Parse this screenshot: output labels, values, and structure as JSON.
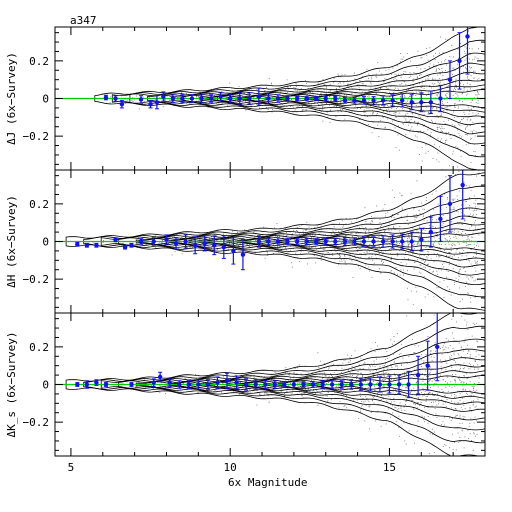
{
  "figure": {
    "tag": "a347",
    "xlabel": "6x Magnitude",
    "reference_line_color": "#00cc00",
    "point_color": "#1010ff",
    "contour_color": "#000000"
  },
  "chart_data": [
    {
      "type": "scatter",
      "ylabel": "ΔJ (6x−Survey)",
      "xlim": [
        4.5,
        18.0
      ],
      "ylim": [
        -0.38,
        0.38
      ],
      "xticks": [
        5,
        10,
        15
      ],
      "yticks": [
        -0.2,
        0,
        0.2
      ],
      "ytick_labels": [
        "−0.2",
        "0",
        "0.2"
      ],
      "reference_line": 0,
      "contour_spread": [
        [
          5.9,
          0.02
        ],
        [
          7,
          0.03
        ],
        [
          8,
          0.035
        ],
        [
          9,
          0.045
        ],
        [
          10,
          0.055
        ],
        [
          11,
          0.065
        ],
        [
          12,
          0.08
        ],
        [
          13,
          0.1
        ],
        [
          14,
          0.13
        ],
        [
          15,
          0.17
        ],
        [
          16,
          0.23
        ],
        [
          16.8,
          0.3
        ],
        [
          17.5,
          0.38
        ]
      ],
      "points": [
        {
          "x": 6.1,
          "y": 0.005,
          "err": 0.012
        },
        {
          "x": 6.4,
          "y": 0.0,
          "err": 0.015
        },
        {
          "x": 6.6,
          "y": -0.03,
          "err": 0.02
        },
        {
          "x": 7.2,
          "y": -0.005,
          "err": 0.02
        },
        {
          "x": 7.5,
          "y": -0.03,
          "err": 0.02
        },
        {
          "x": 7.7,
          "y": -0.02,
          "err": 0.035
        },
        {
          "x": 7.9,
          "y": 0.01,
          "err": 0.025
        },
        {
          "x": 8.2,
          "y": 0.0,
          "err": 0.02
        },
        {
          "x": 8.5,
          "y": 0.0,
          "err": 0.02
        },
        {
          "x": 8.8,
          "y": 0.0,
          "err": 0.02
        },
        {
          "x": 9.1,
          "y": 0.0,
          "err": 0.02
        },
        {
          "x": 9.4,
          "y": 0.0,
          "err": 0.02
        },
        {
          "x": 9.7,
          "y": 0.01,
          "err": 0.02
        },
        {
          "x": 10.0,
          "y": 0.0,
          "err": 0.025
        },
        {
          "x": 10.3,
          "y": 0.0,
          "err": 0.03
        },
        {
          "x": 10.6,
          "y": 0.0,
          "err": 0.03
        },
        {
          "x": 10.9,
          "y": 0.01,
          "err": 0.045
        },
        {
          "x": 11.2,
          "y": 0.0,
          "err": 0.025
        },
        {
          "x": 11.5,
          "y": 0.0,
          "err": 0.02
        },
        {
          "x": 11.8,
          "y": 0.0,
          "err": 0.015
        },
        {
          "x": 12.1,
          "y": 0.0,
          "err": 0.012
        },
        {
          "x": 12.4,
          "y": 0.0,
          "err": 0.01
        },
        {
          "x": 12.7,
          "y": 0.0,
          "err": 0.01
        },
        {
          "x": 13.0,
          "y": 0.0,
          "err": 0.012
        },
        {
          "x": 13.3,
          "y": 0.0,
          "err": 0.012
        },
        {
          "x": 13.6,
          "y": -0.01,
          "err": 0.015
        },
        {
          "x": 13.9,
          "y": -0.01,
          "err": 0.015
        },
        {
          "x": 14.2,
          "y": -0.01,
          "err": 0.02
        },
        {
          "x": 14.5,
          "y": -0.01,
          "err": 0.02
        },
        {
          "x": 14.8,
          "y": -0.01,
          "err": 0.025
        },
        {
          "x": 15.1,
          "y": -0.01,
          "err": 0.03
        },
        {
          "x": 15.4,
          "y": -0.01,
          "err": 0.035
        },
        {
          "x": 15.7,
          "y": -0.02,
          "err": 0.04
        },
        {
          "x": 16.0,
          "y": -0.02,
          "err": 0.05
        },
        {
          "x": 16.3,
          "y": -0.02,
          "err": 0.06
        },
        {
          "x": 16.6,
          "y": 0.0,
          "err": 0.07
        },
        {
          "x": 16.9,
          "y": 0.1,
          "err": 0.1
        },
        {
          "x": 17.2,
          "y": 0.2,
          "err": 0.15
        },
        {
          "x": 17.45,
          "y": 0.33,
          "err": 0.2
        }
      ]
    },
    {
      "type": "scatter",
      "ylabel": "ΔH (6x−Survey)",
      "xlim": [
        4.5,
        18.0
      ],
      "ylim": [
        -0.38,
        0.38
      ],
      "xticks": [
        5,
        10,
        15
      ],
      "yticks": [
        -0.2,
        0,
        0.2
      ],
      "ytick_labels": [
        "−0.2",
        "0",
        "0.2"
      ],
      "reference_line": 0,
      "contour_spread": [
        [
          5.0,
          0.02
        ],
        [
          7,
          0.03
        ],
        [
          8,
          0.04
        ],
        [
          9,
          0.05
        ],
        [
          10,
          0.06
        ],
        [
          11,
          0.065
        ],
        [
          12,
          0.08
        ],
        [
          13,
          0.1
        ],
        [
          14,
          0.13
        ],
        [
          15,
          0.17
        ],
        [
          16,
          0.24
        ],
        [
          16.6,
          0.3
        ],
        [
          17.2,
          0.36
        ]
      ],
      "points": [
        {
          "x": 5.2,
          "y": -0.015,
          "err": 0.01
        },
        {
          "x": 5.5,
          "y": -0.02,
          "err": 0.01
        },
        {
          "x": 5.8,
          "y": -0.02,
          "err": 0.01
        },
        {
          "x": 6.4,
          "y": 0.01,
          "err": 0.01
        },
        {
          "x": 6.7,
          "y": -0.03,
          "err": 0.01
        },
        {
          "x": 6.9,
          "y": -0.02,
          "err": 0.01
        },
        {
          "x": 7.2,
          "y": 0.0,
          "err": 0.015
        },
        {
          "x": 7.6,
          "y": 0.0,
          "err": 0.02
        },
        {
          "x": 8.0,
          "y": 0.01,
          "err": 0.025
        },
        {
          "x": 8.3,
          "y": -0.01,
          "err": 0.03
        },
        {
          "x": 8.6,
          "y": 0.0,
          "err": 0.035
        },
        {
          "x": 8.9,
          "y": -0.02,
          "err": 0.045
        },
        {
          "x": 9.2,
          "y": -0.01,
          "err": 0.04
        },
        {
          "x": 9.5,
          "y": -0.02,
          "err": 0.05
        },
        {
          "x": 9.8,
          "y": -0.03,
          "err": 0.06
        },
        {
          "x": 10.1,
          "y": -0.05,
          "err": 0.07
        },
        {
          "x": 10.4,
          "y": -0.07,
          "err": 0.08
        },
        {
          "x": 10.9,
          "y": 0.0,
          "err": 0.03
        },
        {
          "x": 11.2,
          "y": 0.0,
          "err": 0.02
        },
        {
          "x": 11.5,
          "y": 0.0,
          "err": 0.02
        },
        {
          "x": 11.8,
          "y": 0.0,
          "err": 0.015
        },
        {
          "x": 12.1,
          "y": 0.0,
          "err": 0.015
        },
        {
          "x": 12.4,
          "y": 0.0,
          "err": 0.015
        },
        {
          "x": 12.7,
          "y": 0.0,
          "err": 0.015
        },
        {
          "x": 13.0,
          "y": 0.0,
          "err": 0.015
        },
        {
          "x": 13.3,
          "y": 0.0,
          "err": 0.015
        },
        {
          "x": 13.6,
          "y": 0.0,
          "err": 0.02
        },
        {
          "x": 13.9,
          "y": 0.0,
          "err": 0.02
        },
        {
          "x": 14.2,
          "y": 0.0,
          "err": 0.025
        },
        {
          "x": 14.5,
          "y": 0.0,
          "err": 0.025
        },
        {
          "x": 14.8,
          "y": 0.0,
          "err": 0.03
        },
        {
          "x": 15.1,
          "y": 0.0,
          "err": 0.035
        },
        {
          "x": 15.4,
          "y": 0.0,
          "err": 0.04
        },
        {
          "x": 15.7,
          "y": 0.0,
          "err": 0.05
        },
        {
          "x": 16.0,
          "y": 0.01,
          "err": 0.06
        },
        {
          "x": 16.3,
          "y": 0.05,
          "err": 0.08
        },
        {
          "x": 16.6,
          "y": 0.12,
          "err": 0.12
        },
        {
          "x": 16.9,
          "y": 0.2,
          "err": 0.15
        },
        {
          "x": 17.3,
          "y": 0.3,
          "err": 0.18
        }
      ]
    },
    {
      "type": "scatter",
      "ylabel": "ΔK_s (6x−Survey)",
      "xlim": [
        4.5,
        18.0
      ],
      "ylim": [
        -0.38,
        0.38
      ],
      "xticks": [
        5,
        10,
        15
      ],
      "yticks": [
        -0.2,
        0,
        0.2
      ],
      "ytick_labels": [
        "−0.2",
        "0",
        "0.2"
      ],
      "reference_line": 0,
      "contour_spread": [
        [
          5.0,
          0.02
        ],
        [
          7,
          0.03
        ],
        [
          8,
          0.04
        ],
        [
          9,
          0.05
        ],
        [
          10,
          0.06
        ],
        [
          11,
          0.07
        ],
        [
          12,
          0.085
        ],
        [
          13,
          0.11
        ],
        [
          14,
          0.15
        ],
        [
          15,
          0.2
        ],
        [
          15.8,
          0.27
        ],
        [
          16.4,
          0.33
        ],
        [
          17.0,
          0.38
        ]
      ],
      "points": [
        {
          "x": 5.2,
          "y": 0.0,
          "err": 0.01
        },
        {
          "x": 5.5,
          "y": 0.0,
          "err": 0.02
        },
        {
          "x": 5.8,
          "y": 0.01,
          "err": 0.015
        },
        {
          "x": 6.1,
          "y": 0.0,
          "err": 0.01
        },
        {
          "x": 6.9,
          "y": 0.0,
          "err": 0.01
        },
        {
          "x": 7.6,
          "y": 0.01,
          "err": 0.02
        },
        {
          "x": 7.8,
          "y": 0.04,
          "err": 0.025
        },
        {
          "x": 8.1,
          "y": 0.01,
          "err": 0.02
        },
        {
          "x": 8.4,
          "y": 0.0,
          "err": 0.02
        },
        {
          "x": 8.7,
          "y": 0.0,
          "err": 0.02
        },
        {
          "x": 9.0,
          "y": 0.0,
          "err": 0.025
        },
        {
          "x": 9.3,
          "y": 0.0,
          "err": 0.025
        },
        {
          "x": 9.6,
          "y": 0.01,
          "err": 0.03
        },
        {
          "x": 9.9,
          "y": 0.02,
          "err": 0.04
        },
        {
          "x": 10.2,
          "y": 0.01,
          "err": 0.035
        },
        {
          "x": 10.5,
          "y": 0.0,
          "err": 0.03
        },
        {
          "x": 10.8,
          "y": 0.0,
          "err": 0.025
        },
        {
          "x": 11.1,
          "y": 0.0,
          "err": 0.02
        },
        {
          "x": 11.4,
          "y": 0.0,
          "err": 0.02
        },
        {
          "x": 11.7,
          "y": 0.0,
          "err": 0.015
        },
        {
          "x": 12.0,
          "y": 0.0,
          "err": 0.015
        },
        {
          "x": 12.3,
          "y": 0.0,
          "err": 0.015
        },
        {
          "x": 12.6,
          "y": 0.0,
          "err": 0.015
        },
        {
          "x": 12.9,
          "y": 0.0,
          "err": 0.02
        },
        {
          "x": 13.2,
          "y": 0.0,
          "err": 0.02
        },
        {
          "x": 13.5,
          "y": 0.0,
          "err": 0.02
        },
        {
          "x": 13.8,
          "y": 0.0,
          "err": 0.025
        },
        {
          "x": 14.1,
          "y": 0.0,
          "err": 0.03
        },
        {
          "x": 14.4,
          "y": 0.0,
          "err": 0.035
        },
        {
          "x": 14.7,
          "y": 0.0,
          "err": 0.04
        },
        {
          "x": 15.0,
          "y": 0.0,
          "err": 0.045
        },
        {
          "x": 15.3,
          "y": 0.0,
          "err": 0.05
        },
        {
          "x": 15.6,
          "y": 0.0,
          "err": 0.07
        },
        {
          "x": 15.9,
          "y": 0.05,
          "err": 0.1
        },
        {
          "x": 16.2,
          "y": 0.1,
          "err": 0.13
        },
        {
          "x": 16.5,
          "y": 0.2,
          "err": 0.18
        }
      ]
    }
  ]
}
